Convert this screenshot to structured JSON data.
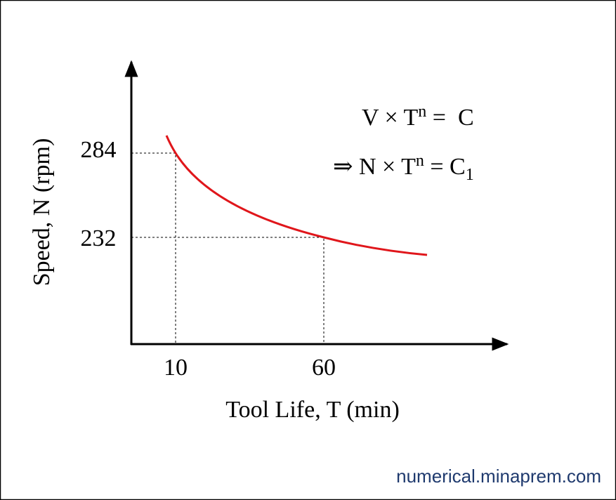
{
  "axes": {
    "y_label": "Speed, N (rpm)",
    "x_label": "Tool Life, T (min)",
    "y_ticks": [
      "284",
      "232"
    ],
    "x_ticks": [
      "10",
      "60"
    ]
  },
  "equations": [
    {
      "base": "V × T",
      "sup": "n",
      "rest": " =  C"
    },
    {
      "base": "⇒ N × T",
      "sup": "n",
      "rest": " = C",
      "sub": "1"
    }
  ],
  "watermark": "numerical.minaprem.com"
}
